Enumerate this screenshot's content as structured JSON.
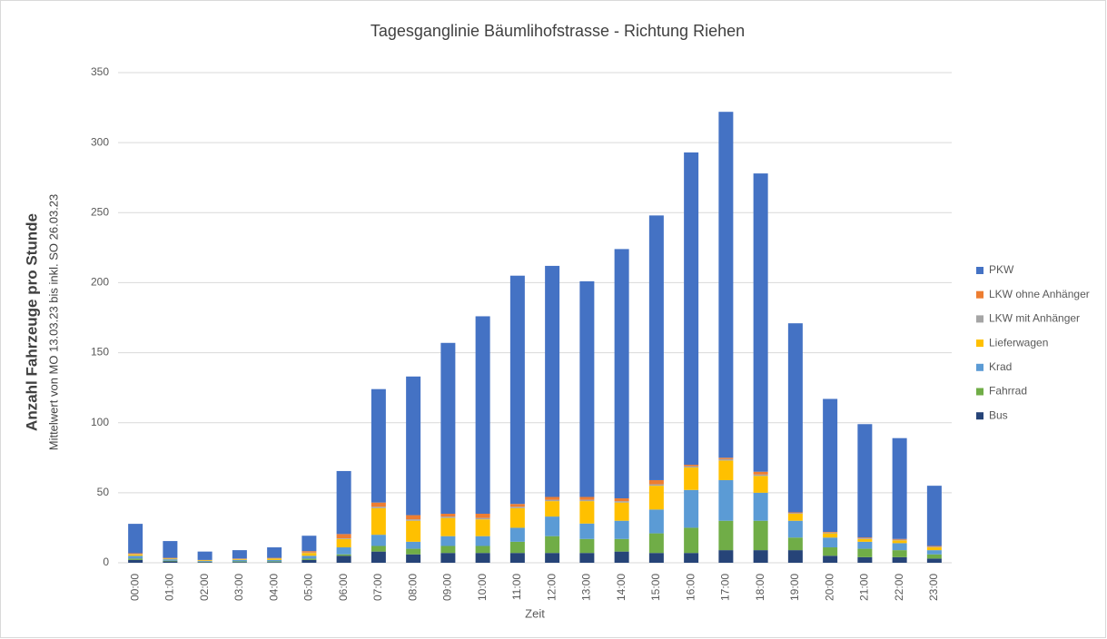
{
  "chart_data": {
    "type": "stacked_bar",
    "title": "Tagesganglinie Bäumlihofstrasse - Richtung Riehen",
    "y_label": "Anzahl Fahrzeuge pro Stunde",
    "y_sublabel": "Mittelwert von MO 13.03.23 bis inkl. SO 26.03.23",
    "x_label": "Zeit",
    "categories": [
      "00:00",
      "01:00",
      "02:00",
      "03:00",
      "04:00",
      "05:00",
      "06:00",
      "07:00",
      "08:00",
      "09:00",
      "10:00",
      "11:00",
      "12:00",
      "13:00",
      "14:00",
      "15:00",
      "16:00",
      "17:00",
      "18:00",
      "19:00",
      "20:00",
      "21:00",
      "22:00",
      "23:00"
    ],
    "series": [
      {
        "name": "Bus",
        "color": "#264478",
        "values": [
          2,
          1,
          0.5,
          0.5,
          0.5,
          2,
          5,
          8,
          6,
          7,
          7,
          7,
          7,
          7,
          8,
          7,
          7,
          9,
          9,
          9,
          5,
          4,
          4,
          3
        ]
      },
      {
        "name": "Fahrrad",
        "color": "#70ad47",
        "values": [
          1,
          0.5,
          0.3,
          0.5,
          0.5,
          1,
          1,
          4,
          4,
          5,
          5,
          8,
          12,
          10,
          9,
          14,
          18,
          21,
          21,
          9,
          6,
          6,
          5,
          3
        ]
      },
      {
        "name": "Krad",
        "color": "#5b9bd5",
        "values": [
          2,
          1,
          0.5,
          1,
          1,
          2,
          5,
          8,
          5,
          7,
          7,
          10,
          14,
          11,
          13,
          17,
          27,
          29,
          20,
          12,
          7,
          5,
          5,
          3
        ]
      },
      {
        "name": "Lieferwagen",
        "color": "#ffc000",
        "values": [
          1,
          0.5,
          0.5,
          0.5,
          1,
          2,
          6,
          19,
          15,
          13,
          12,
          14,
          11,
          16,
          13,
          17,
          16,
          14,
          12,
          5,
          3,
          2,
          2,
          2
        ]
      },
      {
        "name": "LKW mit Anhänger",
        "color": "#a5a5a5",
        "values": [
          0.3,
          0.2,
          0.1,
          0.2,
          0.2,
          0.3,
          0.5,
          1,
          1,
          1,
          1,
          1,
          1,
          1,
          1,
          1,
          1,
          1,
          1,
          0.5,
          0.5,
          0.5,
          0.5,
          0.5
        ]
      },
      {
        "name": "LKW ohne Anhänger",
        "color": "#ed7d31",
        "values": [
          0.5,
          0.3,
          0.1,
          0.3,
          0.3,
          1,
          3,
          3,
          3,
          2,
          3,
          2,
          2,
          2,
          2,
          3,
          1,
          1,
          2,
          0.5,
          0.5,
          0.5,
          0.5,
          0.5
        ]
      },
      {
        "name": "PKW",
        "color": "#4472c4",
        "values": [
          21,
          12,
          6,
          6,
          7.5,
          11,
          45,
          81,
          99,
          122,
          141,
          163,
          165,
          154,
          178,
          189,
          223,
          247,
          213,
          135,
          95,
          81,
          72,
          43
        ]
      }
    ],
    "ylim": [
      0,
      350
    ],
    "yticks": [
      0,
      50,
      100,
      150,
      200,
      250,
      300,
      350
    ],
    "grid": true,
    "legend": "right"
  }
}
